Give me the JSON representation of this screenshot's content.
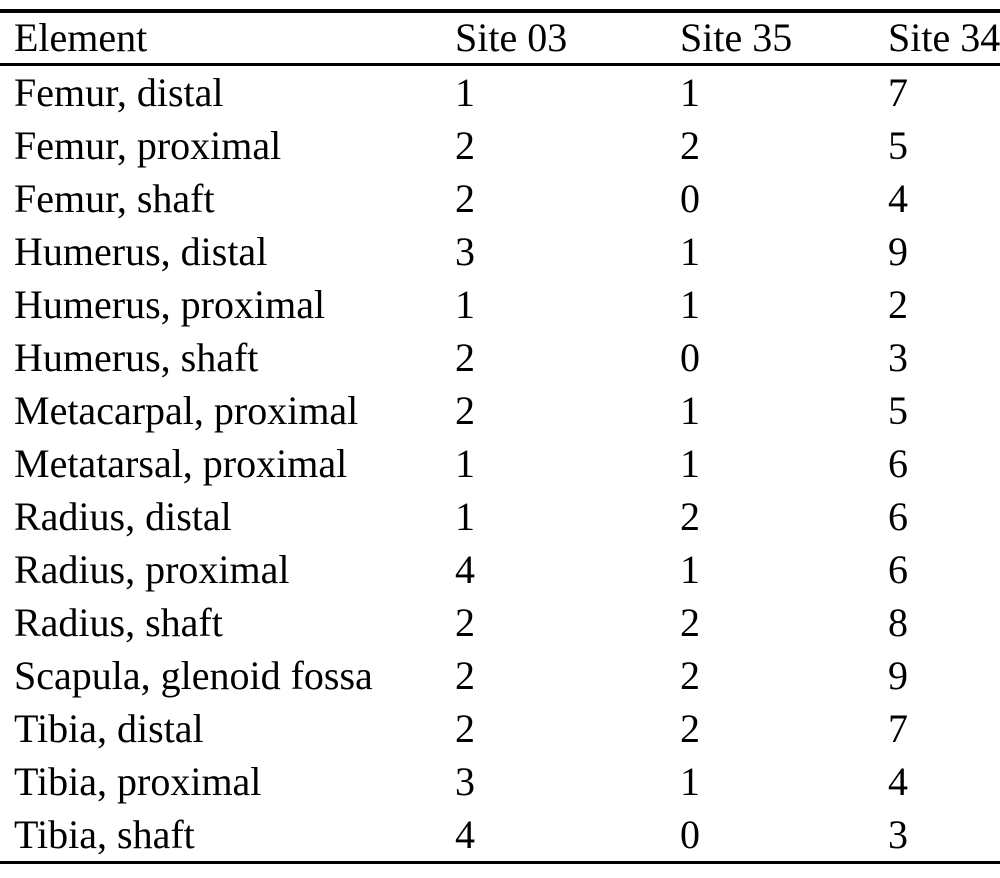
{
  "table": {
    "headers": [
      "Element",
      "Site 03",
      "Site 35",
      "Site 34"
    ],
    "rows": [
      {
        "element": "Femur, distal",
        "counts": [
          1,
          1,
          7
        ]
      },
      {
        "element": "Femur, proximal",
        "counts": [
          2,
          2,
          5
        ]
      },
      {
        "element": "Femur, shaft",
        "counts": [
          2,
          0,
          4
        ]
      },
      {
        "element": "Humerus, distal",
        "counts": [
          3,
          1,
          9
        ]
      },
      {
        "element": "Humerus, proximal",
        "counts": [
          1,
          1,
          2
        ]
      },
      {
        "element": "Humerus, shaft",
        "counts": [
          2,
          0,
          3
        ]
      },
      {
        "element": "Metacarpal, proximal",
        "counts": [
          2,
          1,
          5
        ]
      },
      {
        "element": "Metatarsal, proximal",
        "counts": [
          1,
          1,
          6
        ]
      },
      {
        "element": "Radius, distal",
        "counts": [
          1,
          2,
          6
        ]
      },
      {
        "element": "Radius, proximal",
        "counts": [
          4,
          1,
          6
        ]
      },
      {
        "element": "Radius, shaft",
        "counts": [
          2,
          2,
          8
        ]
      },
      {
        "element": "Scapula, glenoid fossa",
        "counts": [
          2,
          2,
          9
        ]
      },
      {
        "element": "Tibia, distal",
        "counts": [
          2,
          2,
          7
        ]
      },
      {
        "element": "Tibia, proximal",
        "counts": [
          3,
          1,
          4
        ]
      },
      {
        "element": "Tibia, shaft",
        "counts": [
          4,
          0,
          3
        ]
      }
    ]
  },
  "chart_data": {
    "type": "table",
    "title": "",
    "categories": [
      "Femur, distal",
      "Femur, proximal",
      "Femur, shaft",
      "Humerus, distal",
      "Humerus, proximal",
      "Humerus, shaft",
      "Metacarpal, proximal",
      "Metatarsal, proximal",
      "Radius, distal",
      "Radius, proximal",
      "Radius, shaft",
      "Scapula, glenoid fossa",
      "Tibia, distal",
      "Tibia, proximal",
      "Tibia, shaft"
    ],
    "series": [
      {
        "name": "Site 03",
        "values": [
          1,
          2,
          2,
          3,
          1,
          2,
          2,
          1,
          1,
          4,
          2,
          2,
          2,
          3,
          4
        ]
      },
      {
        "name": "Site 35",
        "values": [
          1,
          2,
          0,
          1,
          1,
          0,
          1,
          1,
          2,
          1,
          2,
          2,
          2,
          1,
          0
        ]
      },
      {
        "name": "Site 34",
        "values": [
          7,
          5,
          4,
          9,
          2,
          3,
          5,
          6,
          6,
          6,
          8,
          9,
          7,
          4,
          3
        ]
      }
    ]
  },
  "colors": {
    "background": "#ffffff",
    "text": "#000000",
    "rule": "#000000"
  }
}
